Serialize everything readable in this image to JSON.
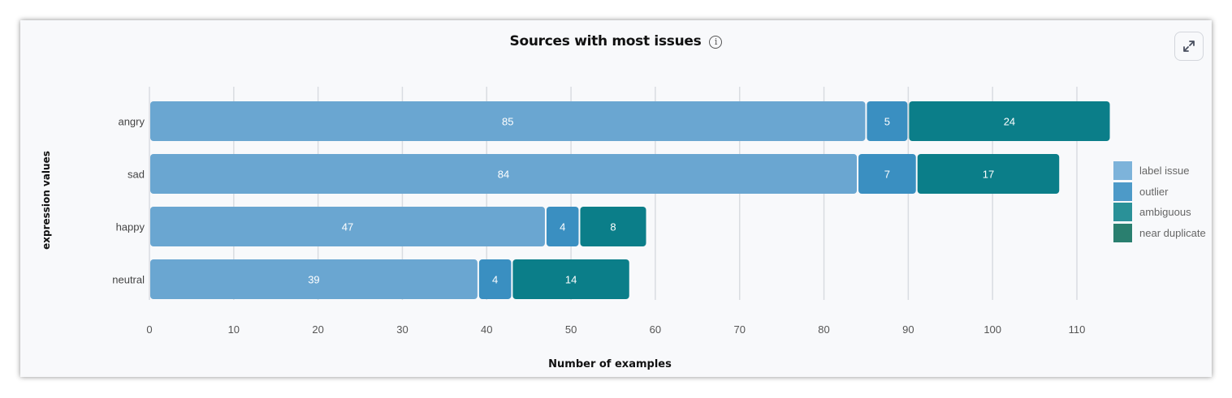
{
  "chart_data": {
    "type": "bar",
    "orientation": "horizontal",
    "stacked": true,
    "title": "Sources with most issues",
    "xlabel": "Number of examples",
    "ylabel": "expression values",
    "categories": [
      "angry",
      "sad",
      "happy",
      "neutral"
    ],
    "xlim": [
      0,
      110
    ],
    "xticks": [
      0,
      10,
      20,
      30,
      40,
      50,
      60,
      70,
      80,
      90,
      100,
      110
    ],
    "grid": true,
    "legend_position": "right",
    "series": [
      {
        "name": "label issue",
        "values": [
          85,
          84,
          47,
          39
        ],
        "color": "#6aa6d1"
      },
      {
        "name": "outlier",
        "values": [
          5,
          7,
          4,
          4
        ],
        "color": "#3a8fc1"
      },
      {
        "name": "ambiguous",
        "values": [
          24,
          17,
          8,
          14
        ],
        "color": "#0b7e89"
      },
      {
        "name": "near duplicate",
        "values": [
          0,
          0,
          0,
          0
        ],
        "color": "#2a7f6f"
      }
    ],
    "legend_colors": [
      "#7db3da",
      "#4d9ac8",
      "#2a9198",
      "#2a7f6f"
    ]
  },
  "icons": {
    "info": "info-circle-icon",
    "expand": "expand-arrows-icon"
  },
  "info_glyph": "i"
}
